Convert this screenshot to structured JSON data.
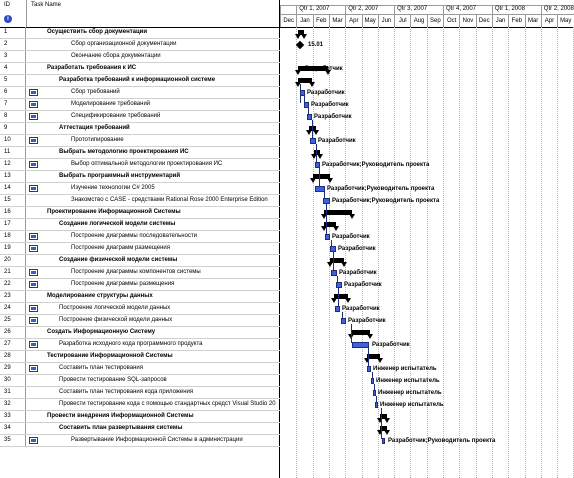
{
  "headers": {
    "id": "ID",
    "info": "i",
    "task_name": "Task Name"
  },
  "timeline": {
    "quarters": [
      {
        "label": ""
      },
      {
        "label": "Qtr 1, 2007"
      },
      {
        "label": "Qtr 2, 2007"
      },
      {
        "label": "Qtr 3, 2007"
      },
      {
        "label": "Qtr 4, 2007"
      },
      {
        "label": "Qtr 1, 2008"
      },
      {
        "label": "Qtr 2, 2008"
      }
    ],
    "months": [
      "Dec",
      "Jan",
      "Feb",
      "Mar",
      "Apr",
      "May",
      "Jun",
      "Jul",
      "Aug",
      "Sep",
      "Oct",
      "Nov",
      "Dec",
      "Jan",
      "Feb",
      "Mar",
      "Apr",
      "May"
    ]
  },
  "tasks": [
    {
      "id": "1",
      "name": "Осуществить сбор документации",
      "level": 0,
      "summary": true,
      "ind": false
    },
    {
      "id": "2",
      "name": "Сбор организационной документации",
      "level": 2,
      "summary": false,
      "ind": false
    },
    {
      "id": "3",
      "name": "Окончание сбора документации",
      "level": 2,
      "summary": false,
      "ind": false
    },
    {
      "id": "4",
      "name": "Разработать требования к ИС",
      "level": 0,
      "summary": true,
      "ind": false
    },
    {
      "id": "5",
      "name": "Разработка требований к информационной системе",
      "level": 1,
      "summary": true,
      "ind": false
    },
    {
      "id": "6",
      "name": "Сбор требований",
      "level": 2,
      "summary": false,
      "ind": true
    },
    {
      "id": "7",
      "name": "Моделирование требований",
      "level": 2,
      "summary": false,
      "ind": true
    },
    {
      "id": "8",
      "name": "Спецификирование требований",
      "level": 2,
      "summary": false,
      "ind": true
    },
    {
      "id": "9",
      "name": "Аттестация требований",
      "level": 1,
      "summary": true,
      "ind": false
    },
    {
      "id": "10",
      "name": "Прототипирование",
      "level": 2,
      "summary": false,
      "ind": true
    },
    {
      "id": "11",
      "name": "Выбрать методологию проектирования ИС",
      "level": 1,
      "summary": true,
      "ind": false
    },
    {
      "id": "12",
      "name": "Выбор оптимальной методологии проектирования ИС",
      "level": 2,
      "summary": false,
      "ind": true
    },
    {
      "id": "13",
      "name": "Выбрать программный инструментарий",
      "level": 1,
      "summary": true,
      "ind": false
    },
    {
      "id": "14",
      "name": "Изучение технологии C# 2005",
      "level": 2,
      "summary": false,
      "ind": true
    },
    {
      "id": "15",
      "name": "Знакомство с CASE - средствами Rational Rose 2000 Enterprise Edition",
      "level": 2,
      "summary": false,
      "ind": false
    },
    {
      "id": "16",
      "name": "Проектирование Информационной Системы",
      "level": 0,
      "summary": true,
      "ind": false
    },
    {
      "id": "17",
      "name": "Создание логической модели системы",
      "level": 1,
      "summary": true,
      "ind": false
    },
    {
      "id": "18",
      "name": "Построение диаграммы последовательности",
      "level": 2,
      "summary": false,
      "ind": true
    },
    {
      "id": "19",
      "name": "Построение диаграмм размещения",
      "level": 2,
      "summary": false,
      "ind": true
    },
    {
      "id": "20",
      "name": "Создание физической модели системы",
      "level": 1,
      "summary": true,
      "ind": false
    },
    {
      "id": "21",
      "name": "Построение диаграммы компонентов системы",
      "level": 2,
      "summary": false,
      "ind": true
    },
    {
      "id": "22",
      "name": "Построение диаграммы размещения",
      "level": 2,
      "summary": false,
      "ind": true
    },
    {
      "id": "23",
      "name": "Моделирование структуры данных",
      "level": 0,
      "summary": true,
      "ind": false
    },
    {
      "id": "24",
      "name": "Построение логической модели данных",
      "level": 1,
      "summary": false,
      "ind": true
    },
    {
      "id": "25",
      "name": "Построение физической модели данных",
      "level": 1,
      "summary": false,
      "ind": true
    },
    {
      "id": "26",
      "name": "Создать Информационную Систему",
      "level": 0,
      "summary": true,
      "ind": false
    },
    {
      "id": "27",
      "name": "Разработка исходного кода программного продукта",
      "level": 1,
      "summary": false,
      "ind": true
    },
    {
      "id": "28",
      "name": "Тестирование Информационной Системы",
      "level": 0,
      "summary": true,
      "ind": false
    },
    {
      "id": "29",
      "name": "Составить план тестирования",
      "level": 1,
      "summary": false,
      "ind": true
    },
    {
      "id": "30",
      "name": "Провести тестирование SQL-запросов",
      "level": 1,
      "summary": false,
      "ind": false
    },
    {
      "id": "31",
      "name": "Составить план тестирования кода приложения",
      "level": 1,
      "summary": false,
      "ind": false
    },
    {
      "id": "32",
      "name": "Провести тестирование кода с помощью стандартных средст Visual Studio 20",
      "level": 1,
      "summary": false,
      "ind": false
    },
    {
      "id": "33",
      "name": "Провести внедрения Информационной Системы",
      "level": 0,
      "summary": true,
      "ind": false
    },
    {
      "id": "34",
      "name": "Составить план развертывания системы",
      "level": 1,
      "summary": true,
      "ind": false
    },
    {
      "id": "35",
      "name": "Развертывание Информационной Системы  в администрации",
      "level": 2,
      "summary": false,
      "ind": true
    }
  ],
  "gantt": {
    "milestone_label": "15.01",
    "resources": {
      "r4": "Разработчик",
      "r6": "Разработчик",
      "r7": "Разработчик",
      "r8": "Разработчик",
      "r10": "Разработчик",
      "r12": "Разработчик;Руководитель проекта",
      "r14": "Разработчик;Руководитель проекта",
      "r15": "Разработчик;Руководитель проекта",
      "r18": "Разработчик",
      "r19": "Разработчик",
      "r21": "Разработчик",
      "r22": "Разработчик",
      "r24": "Разработчик",
      "r25": "Разработчик",
      "r27": "Разработчик",
      "r29": "Инженер испытатель",
      "r30": "Инженер испытатель",
      "r31": "Инженер испытатель",
      "r32": "Инженер испытатель",
      "r35": "Разработчик;Руководитель проекта"
    }
  }
}
